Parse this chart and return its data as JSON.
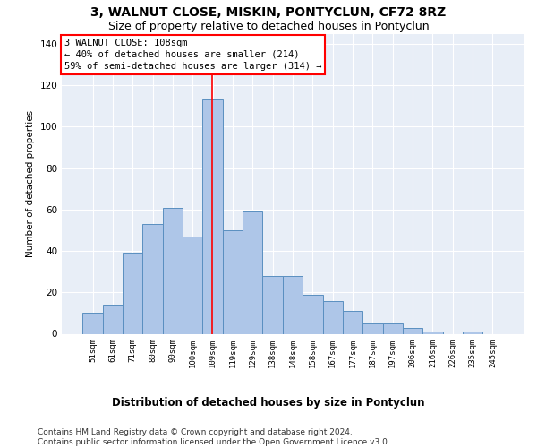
{
  "title": "3, WALNUT CLOSE, MISKIN, PONTYCLUN, CF72 8RZ",
  "subtitle": "Size of property relative to detached houses in Pontyclun",
  "xlabel": "Distribution of detached houses by size in Pontyclun",
  "ylabel": "Number of detached properties",
  "categories": [
    "51sqm",
    "61sqm",
    "71sqm",
    "80sqm",
    "90sqm",
    "100sqm",
    "109sqm",
    "119sqm",
    "129sqm",
    "138sqm",
    "148sqm",
    "158sqm",
    "167sqm",
    "177sqm",
    "187sqm",
    "197sqm",
    "206sqm",
    "216sqm",
    "226sqm",
    "235sqm",
    "245sqm"
  ],
  "values": [
    10,
    14,
    39,
    53,
    61,
    47,
    113,
    50,
    59,
    28,
    28,
    19,
    16,
    11,
    5,
    5,
    3,
    1,
    0,
    1,
    0
  ],
  "bar_color": "#aec6e8",
  "bar_edge_color": "#5a8fc0",
  "vline_x": 5.98,
  "vline_color": "red",
  "annotation_text": "3 WALNUT CLOSE: 108sqm\n← 40% of detached houses are smaller (214)\n59% of semi-detached houses are larger (314) →",
  "annotation_box_color": "white",
  "annotation_box_edgecolor": "red",
  "ylim": [
    0,
    145
  ],
  "yticks": [
    0,
    20,
    40,
    60,
    80,
    100,
    120,
    140
  ],
  "background_color": "#e8eef7",
  "footer": "Contains HM Land Registry data © Crown copyright and database right 2024.\nContains public sector information licensed under the Open Government Licence v3.0.",
  "title_fontsize": 10,
  "subtitle_fontsize": 9,
  "annotation_fontsize": 7.5,
  "footer_fontsize": 6.5,
  "xlabel_fontsize": 8.5
}
